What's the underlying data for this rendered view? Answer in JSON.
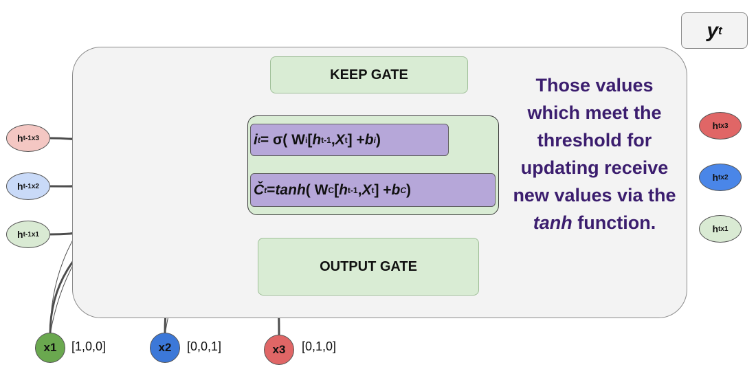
{
  "diagram": {
    "output_label": {
      "base": "y",
      "sub": "t"
    },
    "keep_gate_label": "KEEP GATE",
    "output_gate_label": "OUTPUT GATE",
    "update_gate": {
      "input_formula": {
        "lhs": "i",
        "lhs_sub": "t",
        "eq": " = σ( W",
        "w_sub": "i",
        "open": " [",
        "h": "h",
        "h_sub": "t-1",
        "comma": " , ",
        "x": "X",
        "x_sub": "t",
        "close": "] + ",
        "b": "b",
        "b_sub": "i",
        "end": ")"
      },
      "candidate_formula": {
        "lhs": "Č",
        "lhs_sub": "t",
        "eq": " = ",
        "fn": "tanh",
        "paren": "( W",
        "w_sub": "C",
        "open": " [",
        "h": "h",
        "h_sub": "t-1",
        "comma": " , ",
        "x": "X",
        "x_sub": "t",
        "close": "] + ",
        "b": "b",
        "b_sub": "C",
        "end": " )"
      }
    },
    "annotation": {
      "before": "Those values which meet the threshold for updating receive new values via the ",
      "emphasis": "tanh",
      "after": " function."
    },
    "hidden_inputs": [
      {
        "base": "h",
        "sup": "t-1",
        "sub": "x3",
        "color": "#f4c7c3"
      },
      {
        "base": "h",
        "sup": "t-1",
        "sub": "x2",
        "color": "#c9daf8"
      },
      {
        "base": "h",
        "sup": "t-1",
        "sub": "x1",
        "color": "#d9ead3"
      }
    ],
    "hidden_outputs": [
      {
        "base": "h",
        "sup": "t",
        "sub": "x3",
        "color": "#e06666"
      },
      {
        "base": "h",
        "sup": "t",
        "sub": "x2",
        "color": "#4a86e8"
      },
      {
        "base": "h",
        "sup": "t",
        "sub": "x1",
        "color": "#d9ead3"
      }
    ],
    "inputs": [
      {
        "label": "x1",
        "vector": "[1,0,0]",
        "color": "#6aa84f"
      },
      {
        "label": "x2",
        "vector": "[0,0,1]",
        "color": "#3c78d8"
      },
      {
        "label": "x3",
        "vector": "[0,1,0]",
        "color": "#e06666"
      }
    ]
  }
}
